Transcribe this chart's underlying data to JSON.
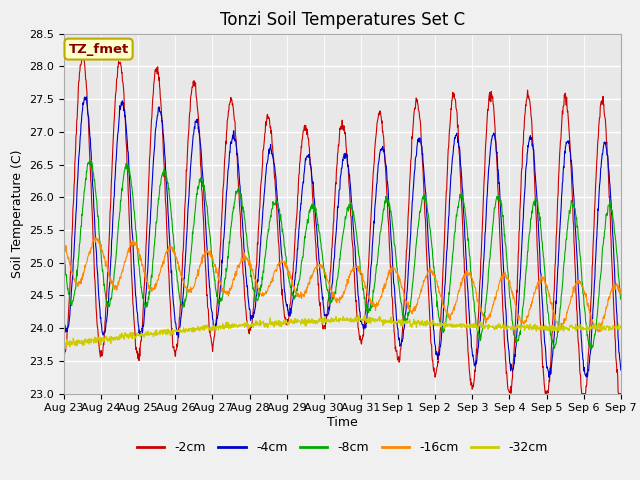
{
  "title": "Tonzi Soil Temperatures Set C",
  "xlabel": "Time",
  "ylabel": "Soil Temperature (C)",
  "ylim": [
    23.0,
    28.5
  ],
  "annotation_text": "TZ_fmet",
  "annotation_bg": "#ffffcc",
  "annotation_border": "#bbaa00",
  "annotation_fg": "#880000",
  "series_colors": [
    "#cc0000",
    "#0000cc",
    "#00aa00",
    "#ff8800",
    "#cccc00"
  ],
  "series_labels": [
    "-2cm",
    "-4cm",
    "-8cm",
    "-16cm",
    "-32cm"
  ],
  "plot_bg": "#e8e8e8",
  "fig_bg": "#f0f0f0",
  "grid_color": "#ffffff",
  "tick_label_x": [
    "Aug 23",
    "Aug 24",
    "Aug 25",
    "Aug 26",
    "Aug 27",
    "Aug 28",
    "Aug 29",
    "Aug 30",
    "Aug 31",
    "Sep 1",
    "Sep 2",
    "Sep 3",
    "Sep 4",
    "Sep 5",
    "Sep 6",
    "Sep 7"
  ],
  "title_fontsize": 12,
  "axis_label_fontsize": 9,
  "tick_fontsize": 8,
  "legend_fontsize": 9
}
